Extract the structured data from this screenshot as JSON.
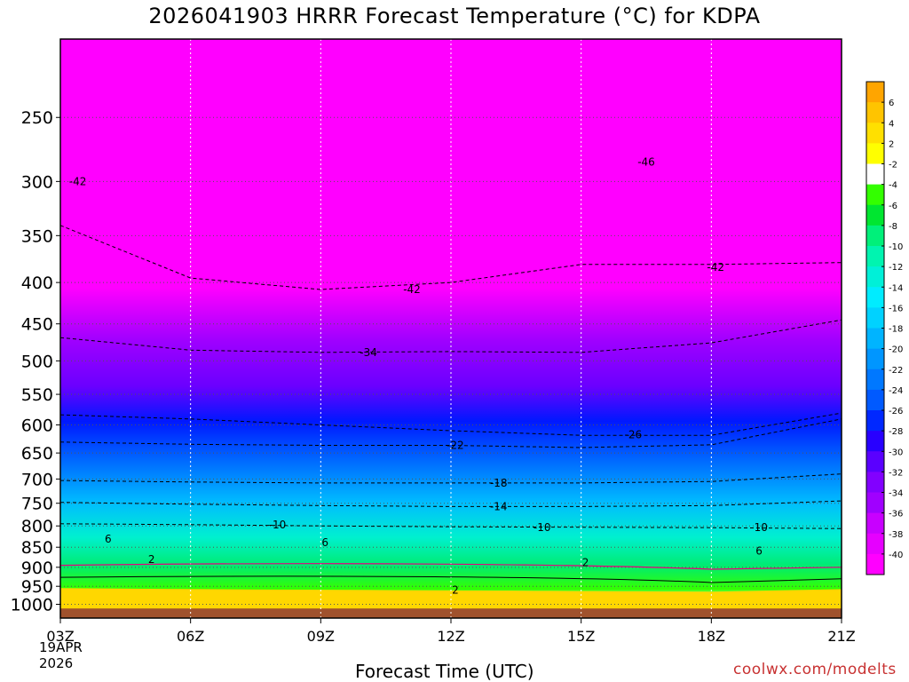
{
  "chart_data": {
    "type": "heatmap",
    "title": "2026041903 HRRR Forecast Temperature (°C) for KDPA",
    "xlabel": "Forecast Time (UTC)",
    "ylabel": "",
    "x_categories": [
      "03Z",
      "06Z",
      "09Z",
      "12Z",
      "15Z",
      "18Z",
      "21Z"
    ],
    "x_first_date": [
      "19APR",
      "2026"
    ],
    "y_axis": "pressure (hPa), inverted, log-like",
    "y_ticks": [
      250,
      300,
      350,
      400,
      450,
      500,
      550,
      600,
      650,
      700,
      750,
      800,
      850,
      900,
      950,
      1000
    ],
    "y_range": [
      200,
      1040
    ],
    "grid": true,
    "colorbar": {
      "position": "right",
      "labels": [
        "6",
        "4",
        "2",
        "-2",
        "-4",
        "-6",
        "-8",
        "-10",
        "-12",
        "-14",
        "-16",
        "-18",
        "-20",
        "-22",
        "-24",
        "-26",
        "-28",
        "-30",
        "-32",
        "-34",
        "-36",
        "-38",
        "-40"
      ],
      "colors": [
        "#ffa500",
        "#ffc400",
        "#ffe000",
        "#ffff00",
        "#ffffff",
        "#33ff00",
        "#00e630",
        "#00f07a",
        "#00f4b0",
        "#00f0d8",
        "#00ecff",
        "#00d2ff",
        "#00b4ff",
        "#0096ff",
        "#0078ff",
        "#005aff",
        "#0028ff",
        "#2800ff",
        "#5a00ff",
        "#8200ff",
        "#a000ff",
        "#c800ff",
        "#e600ff",
        "#ff00ff"
      ]
    },
    "contour_labels": [
      {
        "text": "-42",
        "x": 3.4,
        "p": 300
      },
      {
        "text": "-46",
        "x": 16.5,
        "p": 284
      },
      {
        "text": "-42",
        "x": 18.1,
        "p": 383
      },
      {
        "text": "-42",
        "x": 11.1,
        "p": 408
      },
      {
        "text": "-34",
        "x": 10.1,
        "p": 488
      },
      {
        "text": "-26",
        "x": 16.2,
        "p": 617
      },
      {
        "text": "-22",
        "x": 12.1,
        "p": 636
      },
      {
        "text": "-18",
        "x": 13.1,
        "p": 708
      },
      {
        "text": "-14",
        "x": 13.1,
        "p": 757
      },
      {
        "text": "-10",
        "x": 8.0,
        "p": 797
      },
      {
        "text": "-10",
        "x": 14.1,
        "p": 804
      },
      {
        "text": "-10",
        "x": 19.1,
        "p": 804
      },
      {
        "text": "6",
        "x": 4.1,
        "p": 830
      },
      {
        "text": "6",
        "x": 9.1,
        "p": 839
      },
      {
        "text": "6",
        "x": 19.1,
        "p": 859
      },
      {
        "text": "2",
        "x": 5.1,
        "p": 880
      },
      {
        "text": "2",
        "x": 15.1,
        "p": 888
      },
      {
        "text": "2",
        "x": 12.1,
        "p": 960
      }
    ],
    "series": [
      {
        "name": "-10",
        "x": [
          3,
          6,
          9,
          12,
          15,
          18,
          21
        ],
        "p": [
          795,
          797,
          800,
          802,
          803,
          804,
          806
        ]
      },
      {
        "name": "-14",
        "x": [
          3,
          6,
          9,
          12,
          15,
          18,
          21
        ],
        "p": [
          748,
          752,
          755,
          757,
          757,
          755,
          745
        ]
      },
      {
        "name": "-18",
        "x": [
          3,
          6,
          9,
          12,
          15,
          18,
          21
        ],
        "p": [
          703,
          706,
          708,
          708,
          708,
          705,
          690
        ]
      },
      {
        "name": "-22",
        "x": [
          3,
          6,
          9,
          12,
          15,
          18,
          21
        ],
        "p": [
          630,
          634,
          636,
          636,
          640,
          635,
          590
        ]
      },
      {
        "name": "-26",
        "x": [
          3,
          6,
          9,
          12,
          15,
          18,
          21
        ],
        "p": [
          583,
          590,
          600,
          610,
          618,
          618,
          580
        ]
      },
      {
        "name": "-34",
        "x": [
          3,
          6,
          9,
          12,
          15,
          18,
          21
        ],
        "p": [
          468,
          485,
          488,
          487,
          488,
          475,
          445
        ]
      },
      {
        "name": "-42",
        "x": [
          3,
          6,
          9,
          12,
          15,
          18,
          21
        ],
        "p": [
          340,
          395,
          408,
          400,
          380,
          380,
          378
        ]
      }
    ]
  },
  "credit": "coolwx.com/modelts"
}
